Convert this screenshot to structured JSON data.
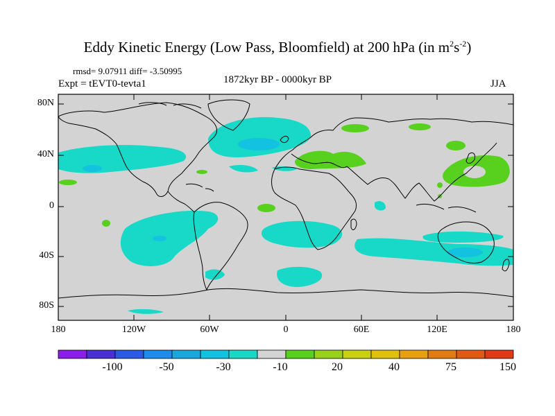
{
  "title": {
    "main": "Eddy Kinetic Energy (Low Pass, Bloomfield) at 200 hPa (in m",
    "sup1": "2",
    "mid": "s",
    "sup2": "-2",
    "end": ")"
  },
  "stats_line": "rmsd= 9.07911 diff= -3.50995",
  "expt_label": "Expt = tEVT0-tevta1",
  "period_label": "1872kyr BP - 0000kyr BP",
  "season_label": "JJA",
  "map": {
    "lat_ticks": [
      "80N",
      "40N",
      "0",
      "40S",
      "80S"
    ],
    "lon_ticks": [
      "180",
      "120W",
      "60W",
      "0",
      "60E",
      "120E",
      "180"
    ],
    "land_background": "#d3d3d3",
    "coastline_color": "#000000"
  },
  "colorbar": {
    "labels": [
      "-100",
      "-50",
      "-30",
      "-10",
      "20",
      "40",
      "75",
      "150"
    ],
    "colors": [
      "#8a1ee8",
      "#4a2fd4",
      "#2a5ae6",
      "#1e8cea",
      "#1aa8dc",
      "#12c2e0",
      "#18d8c8",
      "#d3d3d3",
      "#58d01e",
      "#98d01a",
      "#c8d010",
      "#e0c00c",
      "#e8a010",
      "#e07c12",
      "#e05a14",
      "#e03a14"
    ]
  }
}
